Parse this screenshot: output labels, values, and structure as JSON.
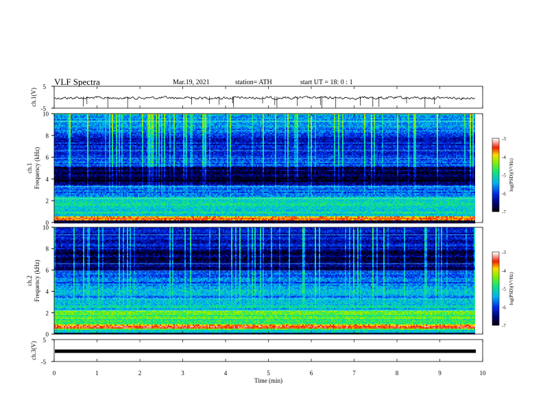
{
  "header": {
    "title": "VLF  Spectra",
    "date": "Mar.19, 2021",
    "station": "station= ATH",
    "start": "start  UT  =    18: 0   : 1"
  },
  "chart_data": [
    {
      "type": "line",
      "panel": "ch1-waveform",
      "ylabel": "ch.1(V)",
      "ylim": [
        -5,
        5
      ],
      "yticks": [
        "5",
        "-5"
      ],
      "xlim": [
        0,
        10
      ],
      "baseline": 0,
      "color": "#000000"
    },
    {
      "type": "heatmap",
      "panel": "ch1-spectrogram",
      "ylabel_top": "ch.1",
      "ylabel": "Frequency  (kHz)",
      "ylim": [
        0,
        10
      ],
      "yticks": [
        "0",
        "2",
        "4",
        "6",
        "8",
        "10"
      ],
      "xlim": [
        0,
        10
      ],
      "colorbar": {
        "label": "log(PSD)(V²/Hz)",
        "ticks": [
          "-3",
          "-4",
          "-5",
          "-6",
          "-7"
        ],
        "range": [
          -7,
          -3
        ]
      },
      "quiet_band_khz": [
        3.5,
        5.2
      ],
      "intense_band_khz": [
        0.2,
        0.6
      ]
    },
    {
      "type": "heatmap",
      "panel": "ch2-spectrogram",
      "ylabel_top": "ch.2",
      "ylabel": "Frequency  (kHz)",
      "ylim": [
        0,
        10
      ],
      "yticks": [
        "0",
        "2",
        "4",
        "6",
        "8",
        "10"
      ],
      "xlim": [
        0,
        10
      ],
      "colorbar": {
        "label": "log(PSD)(V²/Hz)",
        "ticks": [
          "-3",
          "-4",
          "-5",
          "-6",
          "-7"
        ],
        "range": [
          -7,
          -3
        ]
      },
      "quiet_band_khz": [
        6.0,
        8.0
      ],
      "intense_band_khz": [
        0.6,
        2.2
      ]
    },
    {
      "type": "line",
      "panel": "ch3-waveform",
      "ylabel": "ch.3(V)",
      "ylim": [
        -5,
        5
      ],
      "yticks": [
        "5",
        "-5"
      ],
      "xlim": [
        0,
        10
      ],
      "baseline": 0,
      "color": "#000000"
    }
  ],
  "xaxis": {
    "label": "Time  (min)",
    "ticks": [
      "0",
      "1",
      "2",
      "3",
      "4",
      "5",
      "6",
      "7",
      "8",
      "9",
      "10"
    ],
    "data_end": 9.8
  }
}
